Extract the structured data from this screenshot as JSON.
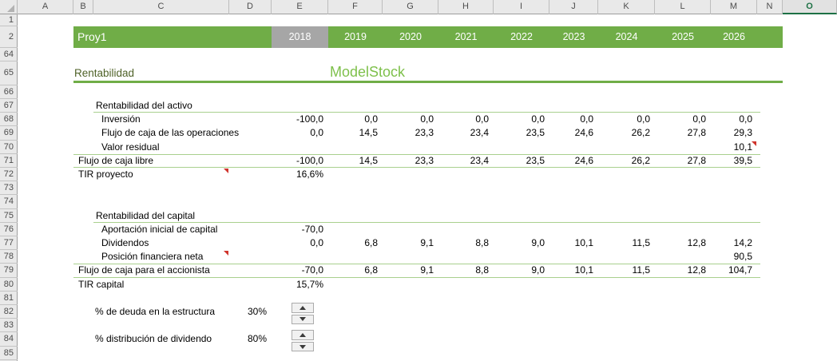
{
  "colors": {
    "banner_green": "#70AD47",
    "selected_year_gray": "#A6A6A6",
    "light_line_green": "#A9D08E",
    "brand_green": "#7EC04B",
    "heading_olive": "#4F6228",
    "comment_red": "#D0342C",
    "active_header_green": "#1E7145"
  },
  "sheet": {
    "column_letters": [
      "A",
      "B",
      "C",
      "D",
      "E",
      "F",
      "G",
      "H",
      "I",
      "J",
      "K",
      "L",
      "M",
      "N",
      "O"
    ],
    "active_column": "O",
    "row_numbers": [
      1,
      2,
      64,
      65,
      66,
      67,
      68,
      69,
      70,
      71,
      72,
      73,
      74,
      75,
      76,
      77,
      78,
      79,
      80,
      81,
      82,
      83,
      84,
      85
    ]
  },
  "banner": {
    "title": "Proy1",
    "years": [
      {
        "label": "2018",
        "col": "E",
        "selected": true
      },
      {
        "label": "2019",
        "col": "F",
        "selected": false
      },
      {
        "label": "2020",
        "col": "G",
        "selected": false
      },
      {
        "label": "2021",
        "col": "H",
        "selected": false
      },
      {
        "label": "2022",
        "col": "I",
        "selected": false
      },
      {
        "label": "2023",
        "col": "J",
        "selected": false
      },
      {
        "label": "2024",
        "col": "K",
        "selected": false
      },
      {
        "label": "2025",
        "col": "L",
        "selected": false
      },
      {
        "label": "2026",
        "col": "M",
        "selected": false
      }
    ]
  },
  "title_row": {
    "left": "Rentabilidad",
    "brand": "ModelStock"
  },
  "table": {
    "rows": [
      {
        "row": 67,
        "type": "section",
        "label": "Rentabilidad del activo",
        "underline": true,
        "values": {}
      },
      {
        "row": 68,
        "type": "item",
        "label": "Inversión",
        "values": {
          "E": "-100,0",
          "F": "0,0",
          "G": "0,0",
          "H": "0,0",
          "I": "0,0",
          "J": "0,0",
          "K": "0,0",
          "L": "0,0",
          "M": "0,0"
        }
      },
      {
        "row": 69,
        "type": "item",
        "label": "Flujo de caja de las operaciones",
        "values": {
          "E": "0,0",
          "F": "14,5",
          "G": "23,3",
          "H": "23,4",
          "I": "23,5",
          "J": "24,6",
          "K": "26,2",
          "L": "27,8",
          "M": "29,3"
        }
      },
      {
        "row": 70,
        "type": "item",
        "label": "Valor residual",
        "values": {
          "M": "10,1"
        }
      },
      {
        "row": 71,
        "type": "total",
        "label": "Flujo de caja libre",
        "borders": true,
        "values": {
          "E": "-100,0",
          "F": "14,5",
          "G": "23,3",
          "H": "23,4",
          "I": "23,5",
          "J": "24,6",
          "K": "26,2",
          "L": "27,8",
          "M": "39,5"
        }
      },
      {
        "row": 72,
        "type": "total",
        "label": "TIR proyecto",
        "values": {
          "E": "16,6%"
        }
      },
      {
        "row": 75,
        "type": "section",
        "label": "Rentabilidad del capital",
        "underline": true,
        "values": {}
      },
      {
        "row": 76,
        "type": "item",
        "label": "Aportación inicial de capital",
        "values": {
          "E": "-70,0"
        }
      },
      {
        "row": 77,
        "type": "item",
        "label": "Dividendos",
        "values": {
          "E": "0,0",
          "F": "6,8",
          "G": "9,1",
          "H": "8,8",
          "I": "9,0",
          "J": "10,1",
          "K": "11,5",
          "L": "12,8",
          "M": "14,2"
        }
      },
      {
        "row": 78,
        "type": "item",
        "label": "Posición financiera neta",
        "values": {
          "M": "90,5"
        }
      },
      {
        "row": 79,
        "type": "total",
        "label": "Flujo de caja para el accionista",
        "borders": true,
        "values": {
          "E": "-70,0",
          "F": "6,8",
          "G": "9,1",
          "H": "8,8",
          "I": "9,0",
          "J": "10,1",
          "K": "11,5",
          "L": "12,8",
          "M": "104,7"
        }
      },
      {
        "row": 80,
        "type": "total",
        "label": "TIR capital",
        "values": {
          "E": "15,7%"
        }
      }
    ]
  },
  "comments": [
    {
      "row": 70,
      "col": "M"
    },
    {
      "row": 72,
      "col": "C"
    },
    {
      "row": 78,
      "col": "C"
    }
  ],
  "controls": [
    {
      "row": 82,
      "label": "% de deuda en la estructura",
      "value": "30%"
    },
    {
      "row": 84,
      "label": "% distribución de dividendo",
      "value": "80%"
    }
  ]
}
